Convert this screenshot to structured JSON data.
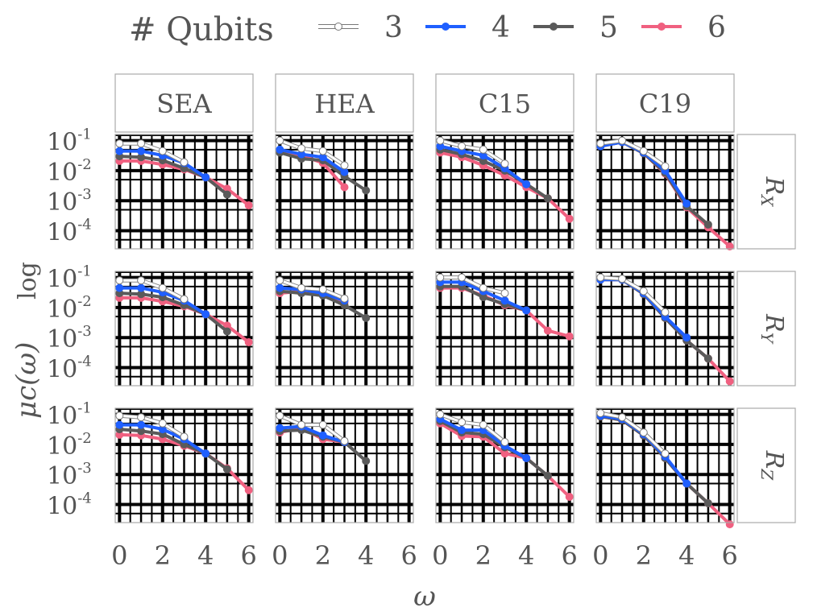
{
  "chart_data": {
    "type": "line",
    "legend": {
      "title": "# Qubits",
      "placement": "top",
      "entries": [
        {
          "label": "3",
          "color": "#ffffff"
        },
        {
          "label": "4",
          "color": "#1f5fff"
        },
        {
          "label": "5",
          "color": "#5a5a5a"
        },
        {
          "label": "6",
          "color": "#f06080"
        }
      ]
    },
    "xlabel": "ω",
    "ylabel": "μc(ω)",
    "ylabel_extra": "log",
    "columns": [
      "SEA",
      "HEA",
      "C15",
      "C19"
    ],
    "rows": [
      {
        "label": "R",
        "sub": "X"
      },
      {
        "label": "R",
        "sub": "Y"
      },
      {
        "label": "R",
        "sub": "Z"
      }
    ],
    "x_ticks": [
      0,
      2,
      4,
      6
    ],
    "xlim": [
      -0.2,
      6.2
    ],
    "y_scale": "log",
    "y_ticks": [
      {
        "base": "10",
        "exp": "-1",
        "value": 0.1
      },
      {
        "base": "10",
        "exp": "-2",
        "value": 0.01
      },
      {
        "base": "10",
        "exp": "-3",
        "value": 0.001
      },
      {
        "base": "10",
        "exp": "-4",
        "value": 0.0001
      }
    ],
    "ylim": [
      2.5e-05,
      0.16
    ],
    "grid": true,
    "panels": [
      [
        {
          "series": [
            {
              "name": "3",
              "x": [
                0,
                1,
                2,
                3
              ],
              "y": [
                0.08,
                0.08,
                0.045,
                0.019
              ]
            },
            {
              "name": "4",
              "x": [
                0,
                1,
                2,
                3,
                4
              ],
              "y": [
                0.045,
                0.045,
                0.032,
                0.018,
                0.006
              ]
            },
            {
              "name": "5",
              "x": [
                0,
                1,
                2,
                3,
                4,
                5
              ],
              "y": [
                0.03,
                0.028,
                0.022,
                0.012,
                0.006,
                0.0016
              ]
            },
            {
              "name": "6",
              "x": [
                0,
                1,
                2,
                3,
                4,
                5,
                6
              ],
              "y": [
                0.021,
                0.021,
                0.016,
                0.011,
                0.006,
                0.0025,
                0.0007
              ]
            }
          ]
        },
        {
          "series": [
            {
              "name": "3",
              "x": [
                0,
                1,
                2,
                3
              ],
              "y": [
                0.1,
                0.055,
                0.045,
                0.015
              ]
            },
            {
              "name": "4",
              "x": [
                0,
                1,
                2,
                3
              ],
              "y": [
                0.05,
                0.035,
                0.028,
                0.009
              ]
            },
            {
              "name": "5",
              "x": [
                0,
                1,
                2,
                3,
                4
              ],
              "y": [
                0.04,
                0.025,
                0.022,
                0.0065,
                0.0022
              ]
            },
            {
              "name": "6",
              "x": [
                0,
                1,
                2,
                3
              ],
              "y": [
                0.045,
                0.032,
                0.018,
                0.0028
              ]
            }
          ]
        },
        {
          "series": [
            {
              "name": "3",
              "x": [
                0,
                1,
                2,
                3
              ],
              "y": [
                0.1,
                0.065,
                0.05,
                0.017
              ]
            },
            {
              "name": "4",
              "x": [
                0,
                1,
                2,
                3,
                4
              ],
              "y": [
                0.065,
                0.045,
                0.032,
                0.012,
                0.0035
              ]
            },
            {
              "name": "5",
              "x": [
                0,
                1,
                2,
                3,
                4,
                5
              ],
              "y": [
                0.05,
                0.035,
                0.021,
                0.01,
                0.0036,
                0.0012
              ]
            },
            {
              "name": "6",
              "x": [
                0,
                1,
                2,
                3,
                4,
                5,
                6
              ],
              "y": [
                0.04,
                0.028,
                0.015,
                0.007,
                0.0028,
                0.0012,
                0.00025
              ]
            }
          ]
        },
        {
          "series": [
            {
              "name": "3",
              "x": [
                0,
                1,
                2,
                3
              ],
              "y": [
                0.08,
                0.1,
                0.045,
                0.014
              ]
            },
            {
              "name": "4",
              "x": [
                0,
                1,
                2,
                3,
                4
              ],
              "y": [
                0.065,
                0.09,
                0.04,
                0.01,
                0.0008
              ]
            },
            {
              "name": "5",
              "x": [
                0,
                1,
                2,
                3,
                4,
                5
              ],
              "y": [
                0.065,
                0.09,
                0.038,
                0.0085,
                0.00065,
                0.00016
              ]
            },
            {
              "name": "6",
              "x": [
                0,
                1,
                2,
                3,
                4,
                5,
                6
              ],
              "y": [
                0.065,
                0.09,
                0.038,
                0.008,
                0.0006,
                0.00013,
                3e-05
              ]
            }
          ]
        }
      ],
      [
        {
          "series": [
            {
              "name": "3",
              "x": [
                0,
                1,
                2,
                3
              ],
              "y": [
                0.08,
                0.08,
                0.045,
                0.019
              ]
            },
            {
              "name": "4",
              "x": [
                0,
                1,
                2,
                3,
                4
              ],
              "y": [
                0.045,
                0.045,
                0.032,
                0.017,
                0.006
              ]
            },
            {
              "name": "5",
              "x": [
                0,
                1,
                2,
                3,
                4,
                5
              ],
              "y": [
                0.03,
                0.028,
                0.022,
                0.012,
                0.006,
                0.0016
              ]
            },
            {
              "name": "6",
              "x": [
                0,
                1,
                2,
                3,
                4,
                5,
                6
              ],
              "y": [
                0.021,
                0.021,
                0.016,
                0.011,
                0.006,
                0.0025,
                0.0007
              ]
            }
          ]
        },
        {
          "series": [
            {
              "name": "3",
              "x": [
                0,
                1,
                2,
                3
              ],
              "y": [
                0.08,
                0.045,
                0.04,
                0.02
              ]
            },
            {
              "name": "4",
              "x": [
                0,
                1,
                2,
                3
              ],
              "y": [
                0.045,
                0.04,
                0.03,
                0.017
              ]
            },
            {
              "name": "5",
              "x": [
                0,
                1,
                2,
                3,
                4
              ],
              "y": [
                0.035,
                0.03,
                0.025,
                0.012,
                0.0045
              ]
            },
            {
              "name": "6",
              "x": [
                0,
                1,
                2,
                3
              ],
              "y": [
                0.03,
                0.035,
                0.028,
                0.015
              ]
            }
          ]
        },
        {
          "series": [
            {
              "name": "3",
              "x": [
                0,
                1,
                2,
                3
              ],
              "y": [
                0.1,
                0.1,
                0.045,
                0.03
              ]
            },
            {
              "name": "4",
              "x": [
                0,
                1,
                2,
                3,
                4
              ],
              "y": [
                0.07,
                0.07,
                0.035,
                0.017,
                0.008
              ]
            },
            {
              "name": "5",
              "x": [
                0,
                1,
                2,
                3,
                4
              ],
              "y": [
                0.05,
                0.05,
                0.022,
                0.013,
                0.008
              ]
            },
            {
              "name": "6",
              "x": [
                0,
                1,
                2,
                3,
                4,
                5,
                6
              ],
              "y": [
                0.045,
                0.045,
                0.025,
                0.012,
                0.008,
                0.0017,
                0.0011
              ]
            }
          ]
        },
        {
          "series": [
            {
              "name": "3",
              "x": [
                0,
                1,
                2,
                3
              ],
              "y": [
                0.1,
                0.09,
                0.035,
                0.007
              ]
            },
            {
              "name": "4",
              "x": [
                0,
                1,
                2,
                3,
                4
              ],
              "y": [
                0.085,
                0.085,
                0.03,
                0.005,
                0.001
              ]
            },
            {
              "name": "5",
              "x": [
                0,
                1,
                2,
                3,
                4,
                5
              ],
              "y": [
                0.085,
                0.085,
                0.028,
                0.0045,
                0.0008,
                0.0002
              ]
            },
            {
              "name": "6",
              "x": [
                0,
                1,
                2,
                3,
                4,
                5,
                6
              ],
              "y": [
                0.085,
                0.085,
                0.028,
                0.0045,
                0.0008,
                0.0002,
                3.5e-05
              ]
            }
          ]
        }
      ],
      [
        {
          "series": [
            {
              "name": "3",
              "x": [
                0,
                1,
                2,
                3
              ],
              "y": [
                0.09,
                0.08,
                0.05,
                0.018
              ]
            },
            {
              "name": "4",
              "x": [
                0,
                1,
                2,
                3,
                4
              ],
              "y": [
                0.045,
                0.045,
                0.032,
                0.015,
                0.005
              ]
            },
            {
              "name": "5",
              "x": [
                0,
                1,
                2,
                3,
                4,
                5
              ],
              "y": [
                0.032,
                0.028,
                0.022,
                0.01,
                0.005,
                0.0015
              ]
            },
            {
              "name": "6",
              "x": [
                0,
                1,
                2,
                3,
                4,
                5,
                6
              ],
              "y": [
                0.021,
                0.02,
                0.015,
                0.009,
                0.005,
                0.0016,
                0.0003
              ]
            }
          ]
        },
        {
          "series": [
            {
              "name": "3",
              "x": [
                0,
                1,
                2,
                3
              ],
              "y": [
                0.09,
                0.045,
                0.045,
                0.013
              ]
            },
            {
              "name": "4",
              "x": [
                0,
                1,
                2,
                3
              ],
              "y": [
                0.035,
                0.04,
                0.02,
                0.012
              ]
            },
            {
              "name": "5",
              "x": [
                0,
                1,
                2,
                3,
                4
              ],
              "y": [
                0.028,
                0.03,
                0.018,
                0.012,
                0.0028
              ]
            },
            {
              "name": "6",
              "x": [
                0,
                1,
                2,
                3
              ],
              "y": [
                0.025,
                0.035,
                0.015,
                0.012
              ]
            }
          ]
        },
        {
          "series": [
            {
              "name": "3",
              "x": [
                0,
                1,
                2,
                3
              ],
              "y": [
                0.1,
                0.055,
                0.045,
                0.012
              ]
            },
            {
              "name": "4",
              "x": [
                0,
                1,
                2,
                3,
                4
              ],
              "y": [
                0.07,
                0.03,
                0.03,
                0.009,
                0.0035
              ]
            },
            {
              "name": "5",
              "x": [
                0,
                1,
                2,
                3,
                4,
                5
              ],
              "y": [
                0.06,
                0.025,
                0.022,
                0.008,
                0.0035,
                0.0009
              ]
            },
            {
              "name": "6",
              "x": [
                0,
                1,
                2,
                3,
                4,
                5,
                6
              ],
              "y": [
                0.05,
                0.019,
                0.018,
                0.005,
                0.0035,
                0.0009,
                0.00018
              ]
            }
          ]
        },
        {
          "series": [
            {
              "name": "3",
              "x": [
                0,
                1,
                2,
                3
              ],
              "y": [
                0.11,
                0.08,
                0.025,
                0.005
              ]
            },
            {
              "name": "4",
              "x": [
                0,
                1,
                2,
                3,
                4
              ],
              "y": [
                0.09,
                0.07,
                0.022,
                0.004,
                0.0005
              ]
            },
            {
              "name": "5",
              "x": [
                0,
                1,
                2,
                3,
                4,
                5
              ],
              "y": [
                0.085,
                0.065,
                0.02,
                0.0035,
                0.0005,
                0.00011
              ]
            },
            {
              "name": "6",
              "x": [
                0,
                1,
                2,
                3,
                4,
                5,
                6
              ],
              "y": [
                0.085,
                0.065,
                0.02,
                0.0035,
                0.0005,
                0.00011,
                2.2e-05
              ]
            }
          ]
        }
      ]
    ]
  },
  "colors": {
    "grid": "#000000",
    "panel_border": "#aaaaaa",
    "text": "#555555",
    "background": "#ffffff"
  }
}
